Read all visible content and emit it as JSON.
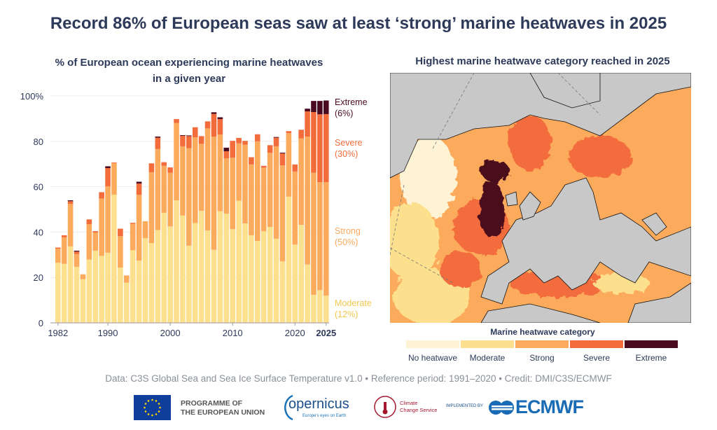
{
  "title": "Record 86% of European seas saw at least ‘strong’ marine heatwaves in 2025",
  "credit": "Data: C3S Global Sea and Sea Ice Surface Temperature v1.0 • Reference period: 1991–2020 • Credit: DMI/C3S/ECMWF",
  "colors": {
    "no_heatwave": "#fff3d6",
    "moderate": "#fde08e",
    "strong": "#fcaa5c",
    "severe": "#f36c3c",
    "extreme": "#4a0a1f",
    "land": "#c8c8c8",
    "title": "#2d3a5a"
  },
  "chart_data": {
    "type": "bar",
    "stacked": true,
    "title": "% of European ocean experiencing marine heatwaves in a given year",
    "title_lines": [
      "% of European ocean experiencing marine heatwaves",
      "in a given year"
    ],
    "xlabel": "",
    "ylabel": "",
    "ylim": [
      0,
      100
    ],
    "grid": true,
    "y_ticks": [
      "0",
      "20",
      "40",
      "60",
      "80",
      "100%"
    ],
    "x_ticks": [
      "1982",
      "1990",
      "2000",
      "2010",
      "2020",
      "2025"
    ],
    "categories": [
      1982,
      1983,
      1984,
      1985,
      1986,
      1987,
      1988,
      1989,
      1990,
      1991,
      1992,
      1993,
      1994,
      1995,
      1996,
      1997,
      1998,
      1999,
      2000,
      2001,
      2002,
      2003,
      2004,
      2005,
      2006,
      2007,
      2008,
      2009,
      2010,
      2011,
      2012,
      2013,
      2014,
      2015,
      2016,
      2017,
      2018,
      2019,
      2020,
      2021,
      2022,
      2023,
      2024,
      2025
    ],
    "series": [
      {
        "name": "Moderate",
        "values": [
          26.5,
          26,
          33.7,
          24.7,
          19.2,
          27.9,
          31.8,
          29.5,
          30.9,
          56.5,
          24.4,
          17.7,
          32,
          27.4,
          37.3,
          35.1,
          40.9,
          48.5,
          42.5,
          54,
          47.3,
          34,
          44,
          49.4,
          40.7,
          32.2,
          49.2,
          48.1,
          41.3,
          53.8,
          43.8,
          38.6,
          36.1,
          40.4,
          42.3,
          37.1,
          27.1,
          55.6,
          34.5,
          43.2,
          25.7,
          12.4,
          14.4,
          12
        ]
      },
      {
        "name": "Strong",
        "values": [
          6.2,
          11.7,
          18.7,
          5.6,
          2.2,
          15.6,
          8,
          25.3,
          29.3,
          13.9,
          13.8,
          3.2,
          11.7,
          29,
          7.5,
          31.3,
          35.7,
          20.7,
          23.7,
          34.1,
          30.5,
          43,
          37.8,
          29.5,
          45,
          49.9,
          33.8,
          24.4,
          31.5,
          25.3,
          34.7,
          31.2,
          43.9,
          28,
          32.6,
          40.7,
          42.3,
          28,
          32.2,
          38.1,
          56.4,
          53.8,
          47.6,
          50
        ]
      },
      {
        "name": "Severe",
        "values": [
          0.5,
          0.9,
          1.2,
          1.1,
          0,
          2.1,
          0.6,
          2.8,
          8,
          0.3,
          3.3,
          0,
          0.4,
          5,
          0,
          3.9,
          5,
          1.6,
          2.3,
          1.7,
          4.6,
          5.3,
          4.4,
          3.4,
          3.1,
          10,
          6.8,
          3.1,
          7.4,
          2.4,
          1.7,
          3.2,
          3.1,
          0.8,
          3.4,
          3.8,
          5.3,
          0.9,
          3.1,
          3.8,
          11.1,
          26.7,
          29.9,
          30
        ]
      },
      {
        "name": "Extreme",
        "values": [
          0,
          0,
          0.4,
          0.4,
          0,
          0,
          0,
          0,
          0.8,
          0,
          0,
          0,
          0,
          0.8,
          0,
          0,
          0.5,
          0,
          0,
          0,
          0.3,
          0.3,
          0,
          0,
          0,
          0.7,
          0.8,
          1.6,
          0,
          0,
          0,
          0,
          0,
          0,
          0,
          0.3,
          0.3,
          0,
          0,
          0,
          1.2,
          4.9,
          5.9,
          6
        ]
      }
    ],
    "annotations_2025": [
      {
        "label": "Extreme",
        "value": "(6%)"
      },
      {
        "label": "Severe",
        "value": "(30%)"
      },
      {
        "label": "Strong",
        "value": "(50%)"
      },
      {
        "label": "Moderate",
        "value": "(12%)"
      }
    ]
  },
  "map": {
    "title": "Highest marine heatwave category reached in 2025",
    "legend_title": "Marine heatwave category",
    "legend": [
      "No heatwave",
      "Moderate",
      "Strong",
      "Severe",
      "Extreme"
    ]
  },
  "logos": {
    "eu_line1": "PROGRAMME OF",
    "eu_line2": "THE EUROPEAN UNION",
    "copernicus": "opernicus",
    "copernicus_tag": "Europe's eyes on Earth",
    "c3s_line1": "Climate",
    "c3s_line2": "Change Service",
    "implemented_by": "IMPLEMENTED BY",
    "ecmwf": "ECMWF"
  }
}
